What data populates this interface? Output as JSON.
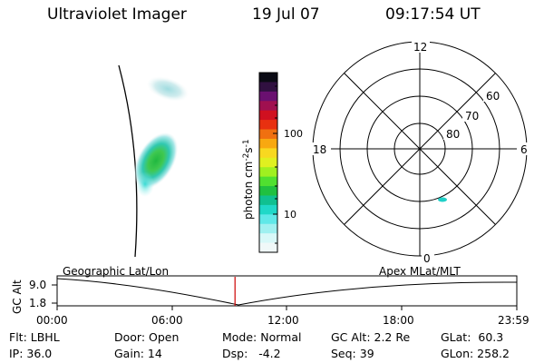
{
  "header": {
    "instrument": "Ultraviolet Imager",
    "date": "19 Jul 07",
    "time": "09:17:54 UT"
  },
  "colorbar": {
    "label": "photon cm-2s-1",
    "ticks": [
      "100",
      "10"
    ],
    "colors": [
      "#0a0a14",
      "#301040",
      "#6a1070",
      "#a01050",
      "#d01020",
      "#e83010",
      "#f07010",
      "#f8a810",
      "#f8d820",
      "#e0f020",
      "#a0f020",
      "#50e030",
      "#20c040",
      "#10c090",
      "#20d8c8",
      "#60e8e8",
      "#a0f0f0",
      "#d8f8f8",
      "#f0f8f8"
    ]
  },
  "polar": {
    "mlat_labels": [
      "60",
      "70",
      "80"
    ],
    "mlt_labels": [
      "12",
      "18",
      "6",
      "0"
    ]
  },
  "timeline": {
    "alt_axis_label": "GC Alt",
    "alt_max": "9.0",
    "alt_min": "1.8",
    "left_title": "Geographic Lat/Lon",
    "right_title": "Apex MLat/MLT",
    "time_ticks": [
      "00:00",
      "06:00",
      "12:00",
      "18:00",
      "23:59"
    ],
    "current_time_marker_color": "#cc0000",
    "current_time_fraction": 0.387
  },
  "info": {
    "filter": "Flt: LBHL",
    "ip": "IP: 36.0",
    "door": "Door: Open",
    "gain": "Gain: 14",
    "mode": "Mode: Normal",
    "dsp": "Dsp:   -4.2",
    "gc_alt": "GC Alt: 2.2 Re",
    "seq": "Seq: 39",
    "glat": "GLat:  60.3",
    "glon": "GLon: 258.2"
  }
}
